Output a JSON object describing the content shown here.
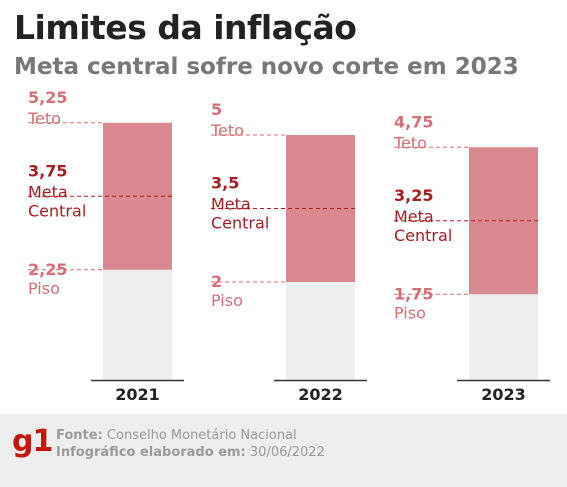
{
  "title": "Limites da inflação",
  "subtitle": "Meta central sofre novo corte em 2023",
  "chart_data": {
    "type": "bar",
    "title": "Limites da inflação",
    "subtitle": "Meta central sofre novo corte em 2023",
    "categories": [
      "2021",
      "2022",
      "2023"
    ],
    "series": [
      {
        "name": "Teto",
        "values": [
          5.25,
          5.0,
          4.75
        ]
      },
      {
        "name": "Meta Central",
        "values": [
          3.75,
          3.5,
          3.25
        ]
      },
      {
        "name": "Piso",
        "values": [
          2.25,
          2.0,
          1.75
        ]
      }
    ],
    "value_labels": {
      "teto": [
        "5,25",
        "5",
        "4,75"
      ],
      "meta": [
        "3,75",
        "3,5",
        "3,25"
      ],
      "piso": [
        "2,25",
        "2",
        "1,75"
      ]
    },
    "label_names": {
      "teto": "Teto",
      "meta_line1": "Meta",
      "meta_line2": "Central",
      "piso": "Piso"
    },
    "ylim": [
      0,
      5.25
    ],
    "grid": false,
    "colors": {
      "band": "#d8888e",
      "base": "#eeeeee",
      "meta_text": "#a51c22",
      "limit_text": "#d56e74",
      "axis": "#333333",
      "dash_meta": "#a51c22",
      "dash_limit": "#d56e74"
    }
  },
  "footer": {
    "logo": "g1",
    "source_label": "Fonte:",
    "source_value": "Conselho Monetário Nacional",
    "date_label": "Infográfico elaborado em:",
    "date_value": "30/06/2022"
  }
}
